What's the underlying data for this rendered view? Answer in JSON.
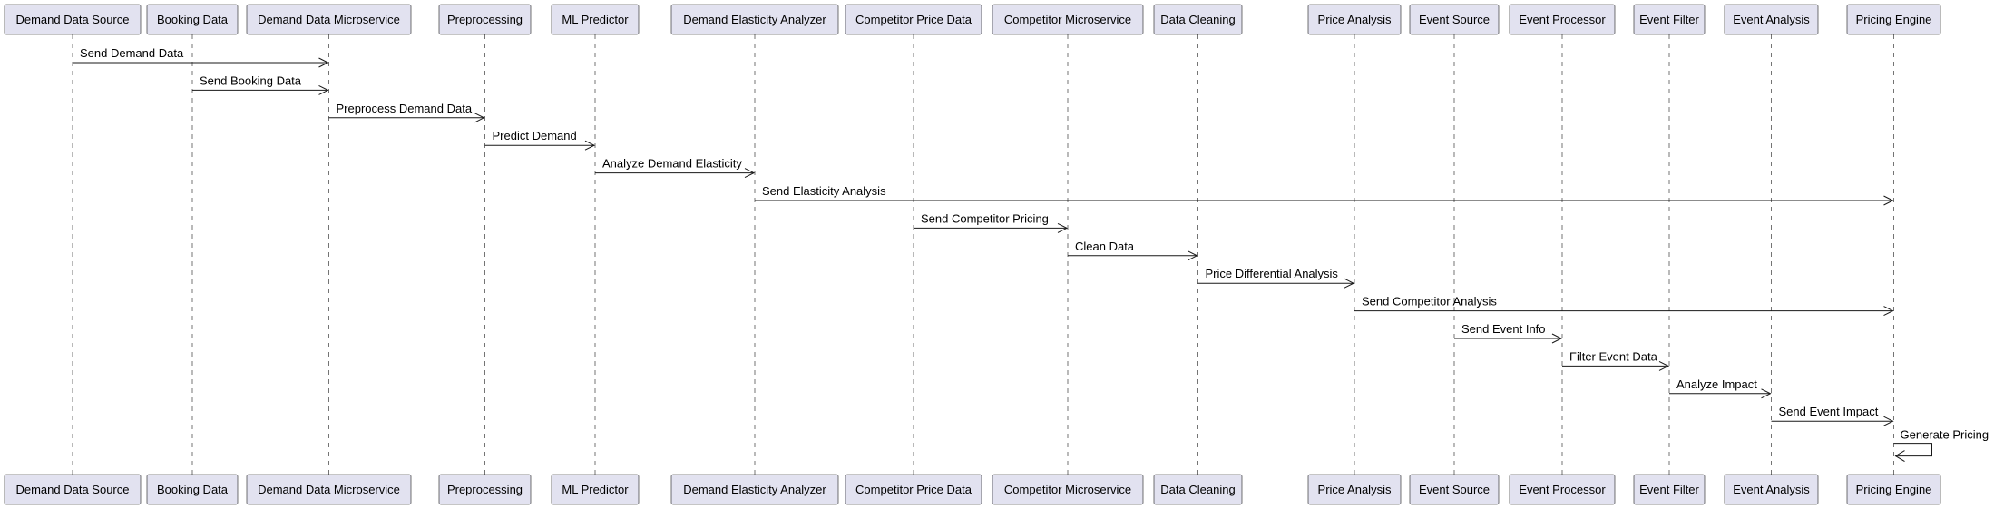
{
  "participants": [
    "Demand Data Source",
    "Booking Data",
    "Demand Data Microservice",
    "Preprocessing",
    "ML Predictor",
    "Demand Elasticity Analyzer",
    "Competitor Price Data",
    "Competitor Microservice",
    "Data Cleaning",
    "Price Analysis",
    "Event Source",
    "Event Processor",
    "Event Filter",
    "Event Analysis",
    "Pricing Engine"
  ],
  "messages": [
    {
      "from": 0,
      "to": 2,
      "label": "Send Demand Data"
    },
    {
      "from": 1,
      "to": 2,
      "label": "Send Booking Data"
    },
    {
      "from": 2,
      "to": 3,
      "label": "Preprocess Demand Data"
    },
    {
      "from": 3,
      "to": 4,
      "label": "Predict Demand"
    },
    {
      "from": 4,
      "to": 5,
      "label": "Analyze Demand Elasticity"
    },
    {
      "from": 5,
      "to": 14,
      "label": "Send Elasticity Analysis"
    },
    {
      "from": 6,
      "to": 7,
      "label": "Send Competitor Pricing"
    },
    {
      "from": 7,
      "to": 8,
      "label": "Clean Data"
    },
    {
      "from": 8,
      "to": 9,
      "label": "Price Differential Analysis"
    },
    {
      "from": 9,
      "to": 14,
      "label": "Send Competitor Analysis"
    },
    {
      "from": 10,
      "to": 11,
      "label": "Send Event Info"
    },
    {
      "from": 11,
      "to": 12,
      "label": "Filter Event Data"
    },
    {
      "from": 12,
      "to": 13,
      "label": "Analyze Impact"
    },
    {
      "from": 13,
      "to": 14,
      "label": "Send Event Impact"
    },
    {
      "from": 14,
      "to": 14,
      "label": "Generate Pricing"
    }
  ],
  "colors": {
    "participant_fill": "#E2E2F0",
    "line": "#181818"
  }
}
